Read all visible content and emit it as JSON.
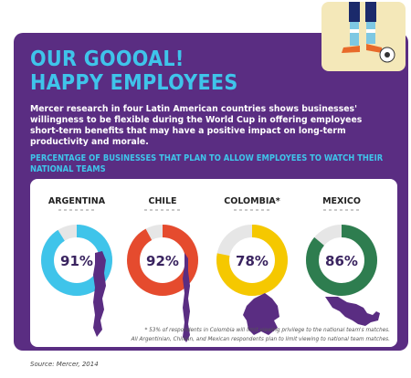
{
  "header": {
    "title_line1": "OUR GOOOAL!",
    "title_line2": "HAPPY EMPLOYEES",
    "intro": "Mercer research in four Latin American countries shows businesses' willingness to be flexible during the World Cup in offering employees short-term benefits that may have a positive impact on long-term productivity and morale."
  },
  "footnotes": {
    "line1": "* 53% of respondents in Colombia will limit viewing privilege to the national team's matches.",
    "line2": "All Argentinian, Chilean, and Mexican respondents plan to limit viewing to national team matches."
  },
  "source": "Source: Mercer, 2014",
  "colors": {
    "panel": "#5a2d82",
    "accent": "#3fc4ea",
    "track": "#e6e6e6",
    "country_shape": "#5a2d82"
  },
  "chart_data": {
    "type": "pie",
    "title": "PERCENTAGE OF BUSINESSES THAT PLAN TO ALLOW EMPLOYEES TO WATCH THEIR NATIONAL TEAMS",
    "categories": [
      "ARGENTINA",
      "CHILE",
      "COLOMBIA*",
      "MEXICO"
    ],
    "values": [
      91,
      92,
      78,
      86
    ],
    "value_labels": [
      "91%",
      "92%",
      "78%",
      "86%"
    ],
    "series_colors": [
      "#3fc4ea",
      "#e54b2e",
      "#f5c800",
      "#2e7d4f"
    ],
    "icons": [
      "argentina-map-icon",
      "chile-map-icon",
      "colombia-map-icon",
      "mexico-map-icon"
    ]
  }
}
